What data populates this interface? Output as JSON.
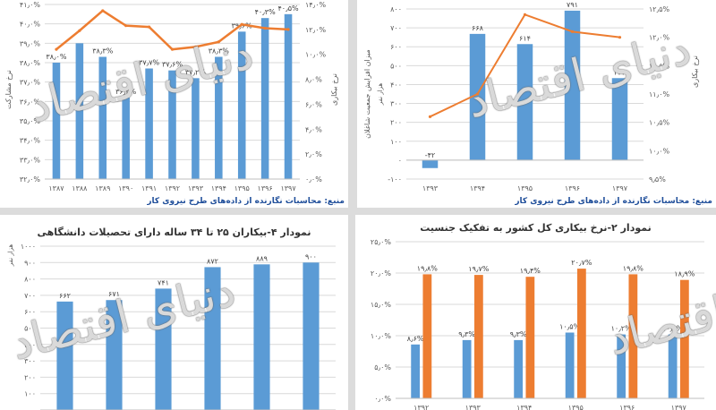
{
  "chart_data": [
    {
      "type": "bar",
      "categories": [
        "۱۳۸۷",
        "۱۳۸۸",
        "۱۳۸۹",
        "۱۳۹۰",
        "۱۳۹۱",
        "۱۳۹۲",
        "۱۳۹۳",
        "۱۳۹۴",
        "۱۳۹۵",
        "۱۳۹۶",
        "۱۳۹۷"
      ],
      "series": [
        {
          "kind": "bar",
          "axis": "left",
          "color": "#5b9bd5",
          "values": [
            38.0,
            39.0,
            38.3,
            36.2,
            37.7,
            37.6,
            37.2,
            38.3,
            39.6,
            40.3,
            40.5
          ],
          "labels": [
            "۳۸٫۰%",
            "",
            "۳۸٫۳%",
            "۳۶٫۲%",
            "۳۷٫۷%",
            "۳۷٫۶%",
            "۳۷٫۲%",
            "۳۸٫۳%",
            "۳۹٫۶%",
            "۴۰٫۳%",
            "۴۰٫۵%"
          ]
        },
        {
          "kind": "line",
          "axis": "right",
          "color": "#ed7d31",
          "values": [
            10.4,
            11.9,
            13.5,
            12.3,
            12.2,
            10.4,
            10.6,
            11.0,
            12.4,
            12.1,
            12.0
          ]
        }
      ],
      "ylabel": "نرخ مشارکت",
      "y2label": "نرخ بیکاری",
      "ylim": [
        32,
        41
      ],
      "y2lim": [
        0,
        14
      ],
      "yticks": [
        "۳۲٫۰%",
        "۳۳٫۰%",
        "۳۴٫۰%",
        "۳۵٫۰%",
        "۳۶٫۰%",
        "۳۷٫۰%",
        "۳۸٫۰%",
        "۳۹٫۰%",
        "۴۰٫۰%",
        "۴۱٫۰%"
      ],
      "y2ticks": [
        "۰٫۰%",
        "۲٫۰%",
        "۴٫۰%",
        "۶٫۰%",
        "۸٫۰%",
        "۱۰٫۰%",
        "۱۲٫۰%",
        "۱۴٫۰%"
      ],
      "caption": "منبع: محاسبات نگارنده از داده‌های طرح نیروی کار"
    },
    {
      "type": "bar",
      "categories": [
        "۱۳۹۳",
        "۱۳۹۴",
        "۱۳۹۵",
        "۱۳۹۶",
        "۱۳۹۷"
      ],
      "series": [
        {
          "kind": "bar",
          "axis": "left",
          "color": "#5b9bd5",
          "values": [
            -42,
            668,
            614,
            791,
            434
          ],
          "labels": [
            "-۴۲",
            "۶۶۸",
            "۶۱۴",
            "۷۹۱",
            "۴۳۴"
          ]
        },
        {
          "kind": "line",
          "axis": "right",
          "color": "#ed7d31",
          "values": [
            10.6,
            11.0,
            12.4,
            12.1,
            12.0
          ]
        }
      ],
      "ylabel": "میزان افزایش جمعیت شاغلان",
      "yunit": "هزار نفر",
      "y2label": "نرخ بیکاری",
      "ylim": [
        -100,
        800
      ],
      "y2lim": [
        9.5,
        12.5
      ],
      "yticks": [
        "-۱۰۰",
        "۰",
        "۱۰۰",
        "۲۰۰",
        "۳۰۰",
        "۴۰۰",
        "۵۰۰",
        "۶۰۰",
        "۷۰۰",
        "۸۰۰"
      ],
      "y2ticks": [
        "۹٫۵%",
        "۱۰٫۰%",
        "۱۰٫۵%",
        "۱۱٫۰%",
        "۱۱٫۵%",
        "۱۲٫۰%",
        "۱۲٫۵%"
      ],
      "caption": "منبع: محاسبات نگارنده از داده‌های طرح نیروی کار"
    },
    {
      "type": "bar",
      "title": "نمودار ۴-بیکاران ۲۵ تا ۳۴ ساله دارای تحصیلات دانشگاهی",
      "categories": [
        "",
        "",
        "",
        "",
        "",
        ""
      ],
      "series": [
        {
          "kind": "bar",
          "axis": "left",
          "color": "#5b9bd5",
          "values": [
            662,
            671,
            741,
            872,
            889,
            900
          ],
          "labels": [
            "۶۶۲",
            "۶۷۱",
            "۷۴۱",
            "۸۷۲",
            "۸۸۹",
            "۹۰۰"
          ]
        }
      ],
      "yunit": "هزار نفر",
      "ylim": [
        0,
        1000
      ],
      "yticks": [
        "۰",
        "۱۰۰",
        "۲۰۰",
        "۳۰۰",
        "۴۰۰",
        "۵۰۰",
        "۶۰۰",
        "۷۰۰",
        "۸۰۰",
        "۹۰۰",
        "۱۰۰۰"
      ]
    },
    {
      "type": "bar",
      "title": "نمودار ۲-نرخ بیکاری کل کشور به تفکیک جنسیت",
      "categories": [
        "۱۳۹۲",
        "۱۳۹۳",
        "۱۳۹۴",
        "۱۳۹۵",
        "۱۳۹۶",
        "۱۳۹۷"
      ],
      "series": [
        {
          "kind": "bar",
          "axis": "left",
          "color": "#5b9bd5",
          "values": [
            8.6,
            9.3,
            9.3,
            10.5,
            10.2,
            10.2
          ],
          "labels": [
            "۸٫۶%",
            "۹٫۳%",
            "۹٫۳%",
            "۱۰٫۵%",
            "۱۰٫۲%",
            "۱۰٫۲%"
          ]
        },
        {
          "kind": "bar",
          "axis": "left",
          "color": "#ed7d31",
          "values": [
            19.8,
            19.7,
            19.4,
            20.7,
            19.8,
            18.9
          ],
          "labels": [
            "۱۹٫۸%",
            "۱۹٫۷%",
            "۱۹٫۴%",
            "۲۰٫۷%",
            "۱۹٫۸%",
            "۱۸٫۹%"
          ]
        }
      ],
      "ylim": [
        0,
        25
      ],
      "yticks": [
        "۰٫۰%",
        "۵٫۰%",
        "۱۰٫۰%",
        "۱۵٫۰%",
        "۲۰٫۰%",
        "۲۵٫۰%"
      ]
    }
  ],
  "watermark": "دنیای اقتصاد"
}
